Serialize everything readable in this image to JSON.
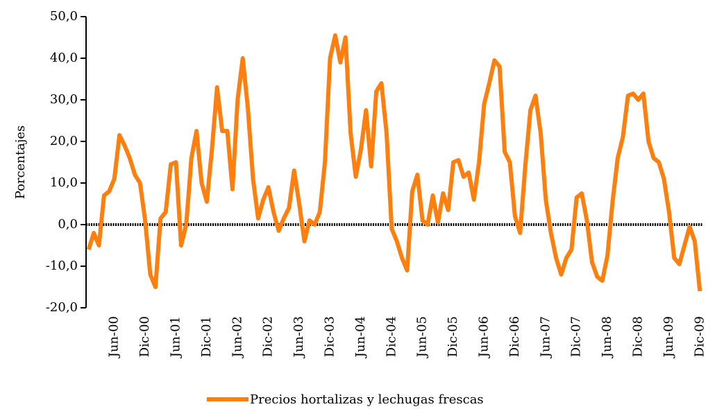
{
  "chart_data": {
    "type": "line",
    "y_label": "Porcentajes",
    "categories": [
      null,
      null,
      null,
      null,
      null,
      "Jun-00",
      null,
      null,
      null,
      null,
      null,
      "Dic-00",
      null,
      null,
      null,
      null,
      null,
      "Jun-01",
      null,
      null,
      null,
      null,
      null,
      "Dic-01",
      null,
      null,
      null,
      null,
      null,
      "Jun-02",
      null,
      null,
      null,
      null,
      null,
      "Dic-02",
      null,
      null,
      null,
      null,
      null,
      "Jun-03",
      null,
      null,
      null,
      null,
      null,
      "Dic-03",
      null,
      null,
      null,
      null,
      null,
      "Jun-04",
      null,
      null,
      null,
      null,
      null,
      "Dic-04",
      null,
      null,
      null,
      null,
      null,
      "Jun-05",
      null,
      null,
      null,
      null,
      null,
      "Dic-05",
      null,
      null,
      null,
      null,
      null,
      "Jun-06",
      null,
      null,
      null,
      null,
      null,
      "Dic-06",
      null,
      null,
      null,
      null,
      null,
      "Jun-07",
      null,
      null,
      null,
      null,
      null,
      "Dic-07",
      null,
      null,
      null,
      null,
      null,
      "Jun-08",
      null,
      null,
      null,
      null,
      null,
      "Dic-08",
      null,
      null,
      null,
      null,
      null,
      "Jun-09",
      null,
      null,
      null,
      null,
      null,
      "Dic-09"
    ],
    "series": [
      {
        "name": "Precios hortalizas y lechugas frescas",
        "color": "#ff7f0e",
        "values": [
          -6,
          -2,
          -5,
          7,
          8,
          11,
          21.5,
          19,
          16,
          12,
          10,
          1,
          -12,
          -15,
          1.5,
          3,
          14.5,
          15,
          -5,
          0,
          16,
          22.5,
          10,
          5.5,
          18,
          33,
          22.5,
          22.5,
          8.5,
          30,
          40,
          28,
          11,
          1.5,
          6,
          9,
          3,
          -1.5,
          1.5,
          4,
          13,
          5,
          -4,
          1,
          0,
          3,
          15,
          40,
          45.5,
          39,
          45,
          22,
          11.5,
          18,
          27.5,
          14,
          32,
          34,
          22,
          -1,
          -4,
          -8,
          -11,
          8,
          12,
          1,
          0,
          7,
          0.5,
          7.5,
          3.5,
          15,
          15.5,
          11.5,
          12.5,
          6,
          15,
          29,
          34,
          39.5,
          38,
          17.5,
          15,
          2,
          -2,
          14,
          27.5,
          31,
          22,
          6,
          -2,
          -8,
          -12,
          -8,
          -6,
          6.5,
          7.5,
          1,
          -9,
          -12.5,
          -13.5,
          -7.5,
          5.5,
          16,
          21,
          31,
          31.5,
          30,
          31.5,
          20,
          16,
          15,
          11,
          3,
          -8,
          -9.5,
          -5,
          -0.5,
          -4,
          -16
        ]
      }
    ],
    "ylim": [
      -20,
      50
    ],
    "yticks": [
      {
        "value": -20,
        "label": "-20,0"
      },
      {
        "value": -10,
        "label": "-10,0"
      },
      {
        "value": 0,
        "label": "0,0"
      },
      {
        "value": 10,
        "label": "10,0"
      },
      {
        "value": 20,
        "label": "20,0"
      },
      {
        "value": 30,
        "label": "30,0"
      },
      {
        "value": 40,
        "label": "40,0"
      },
      {
        "value": 50,
        "label": "50,0"
      }
    ],
    "legend": "bottom"
  }
}
